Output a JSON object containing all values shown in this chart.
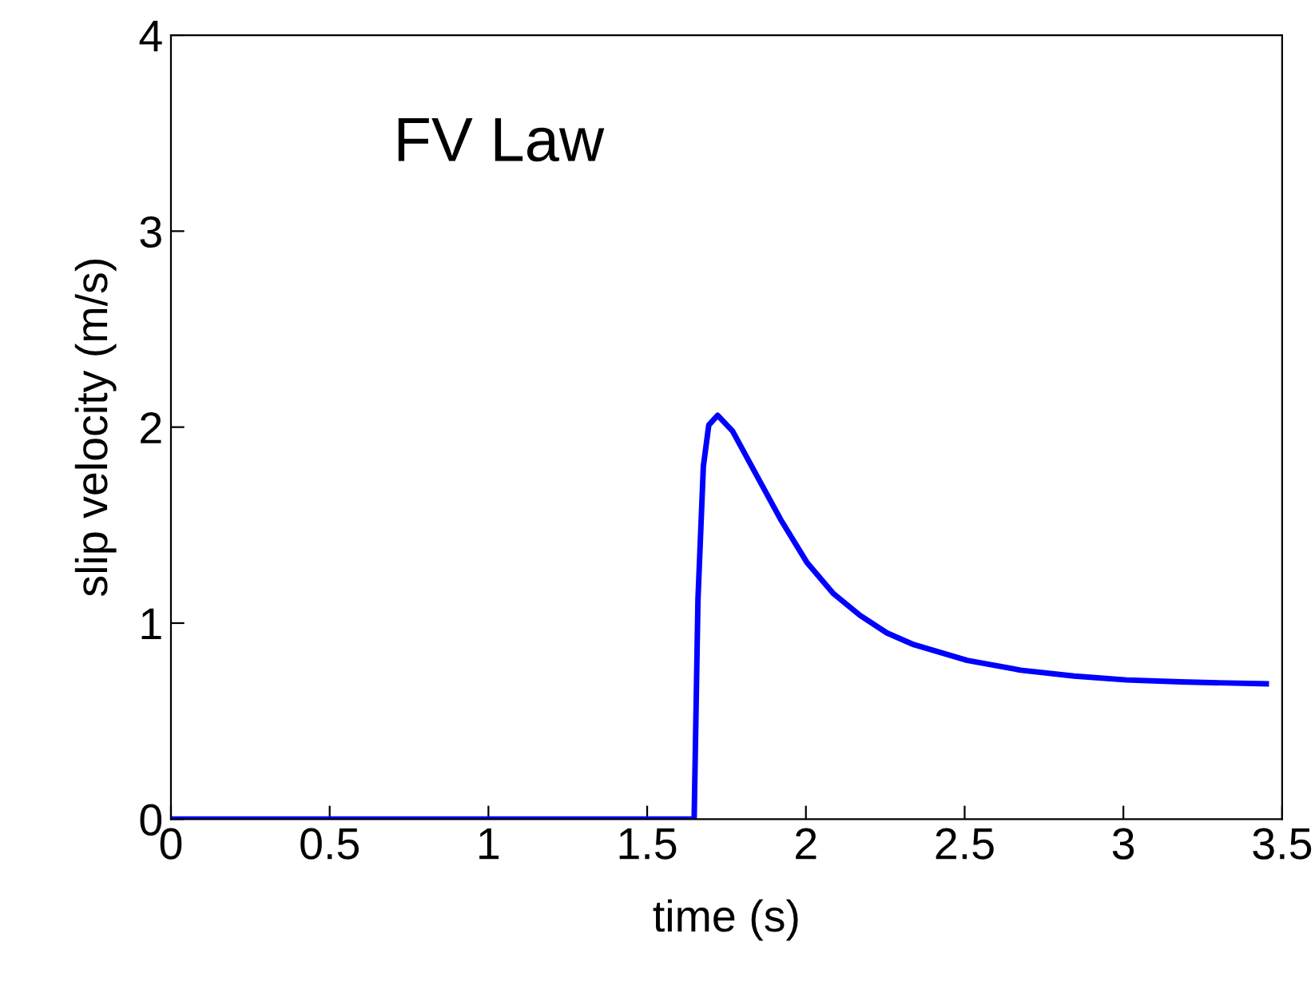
{
  "chart_data": {
    "type": "line",
    "xlabel": "time (s)",
    "ylabel": "slip velocity (m/s)",
    "annotations": [
      "FV Law"
    ],
    "xlim": [
      0,
      3.5
    ],
    "ylim": [
      0,
      4
    ],
    "xticks": [
      0,
      0.5,
      1,
      1.5,
      2,
      2.5,
      3,
      3.5
    ],
    "yticks": [
      0,
      1,
      2,
      3,
      4
    ],
    "grid": false,
    "marker": "none",
    "line_style": "solid",
    "series": [
      {
        "color": "#0000ff",
        "x": [
          0,
          1.648,
          1.66,
          1.677,
          1.694,
          1.722,
          1.769,
          1.836,
          1.92,
          2.003,
          2.087,
          2.17,
          2.255,
          2.34,
          2.508,
          2.676,
          2.845,
          3.01,
          3.18,
          3.45
        ],
        "values": [
          0,
          0,
          1.12,
          1.8,
          2.01,
          2.06,
          1.98,
          1.78,
          1.53,
          1.31,
          1.15,
          1.04,
          0.95,
          0.89,
          0.81,
          0.76,
          0.73,
          0.71,
          0.7,
          0.69
        ]
      }
    ]
  }
}
